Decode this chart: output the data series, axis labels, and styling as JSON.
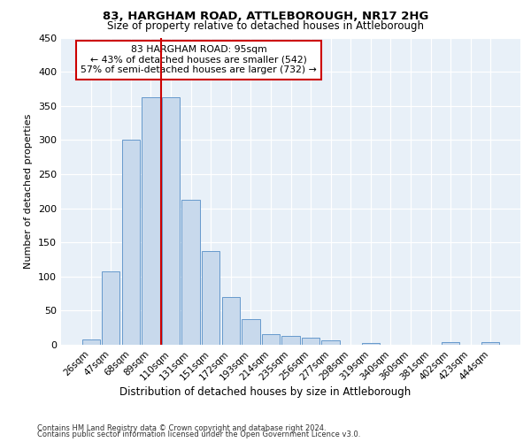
{
  "title1": "83, HARGHAM ROAD, ATTLEBOROUGH, NR17 2HG",
  "title2": "Size of property relative to detached houses in Attleborough",
  "xlabel": "Distribution of detached houses by size in Attleborough",
  "ylabel": "Number of detached properties",
  "categories": [
    "26sqm",
    "47sqm",
    "68sqm",
    "89sqm",
    "110sqm",
    "131sqm",
    "151sqm",
    "172sqm",
    "193sqm",
    "214sqm",
    "235sqm",
    "256sqm",
    "277sqm",
    "298sqm",
    "319sqm",
    "340sqm",
    "360sqm",
    "381sqm",
    "402sqm",
    "423sqm",
    "444sqm"
  ],
  "values": [
    8,
    108,
    301,
    362,
    362,
    213,
    137,
    70,
    38,
    15,
    13,
    10,
    6,
    0,
    3,
    0,
    0,
    0,
    4,
    0,
    4
  ],
  "bar_color": "#c8d9ec",
  "bar_edge_color": "#6699cc",
  "vline_x": 3.5,
  "vline_color": "#cc0000",
  "annotation_line1": "83 HARGHAM ROAD: 95sqm",
  "annotation_line2": "← 43% of detached houses are smaller (542)",
  "annotation_line3": "57% of semi-detached houses are larger (732) →",
  "annotation_box_color": "#cc0000",
  "ylim": [
    0,
    450
  ],
  "yticks": [
    0,
    50,
    100,
    150,
    200,
    250,
    300,
    350,
    400,
    450
  ],
  "bg_color": "#e8f0f8",
  "grid_color": "#ffffff",
  "footer1": "Contains HM Land Registry data © Crown copyright and database right 2024.",
  "footer2": "Contains public sector information licensed under the Open Government Licence v3.0."
}
